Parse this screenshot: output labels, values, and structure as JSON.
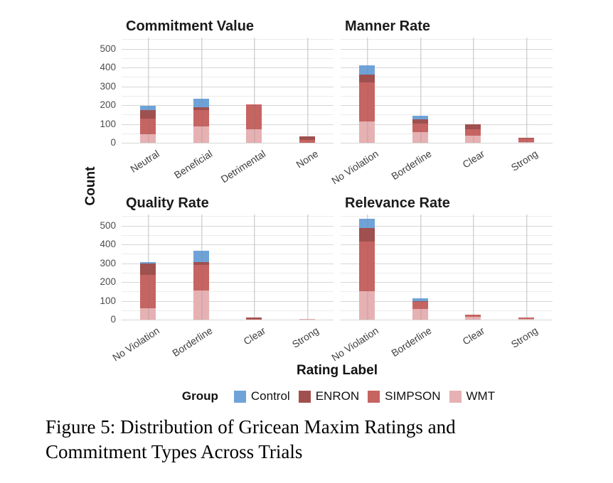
{
  "figure": {
    "y_axis_title": "Count",
    "x_axis_title": "Rating Label",
    "legend": {
      "title": "Group",
      "items": [
        {
          "label": "Control",
          "color": "#6fa3d8"
        },
        {
          "label": "ENRON",
          "color": "#a0504e"
        },
        {
          "label": "SIMPSON",
          "color": "#c66462"
        },
        {
          "label": "WMT",
          "color": "#e6b1b3"
        }
      ]
    },
    "caption_line1": "Figure 5: Distribution of Gricean Maxim Ratings and",
    "caption_line2": "Commitment Types Across Trials"
  },
  "chart_data": [
    {
      "type": "bar",
      "stacked": true,
      "title": "Commitment Value",
      "categories": [
        "Neutral",
        "Beneficial",
        "Detrimental",
        "None"
      ],
      "series": [
        {
          "name": "Control",
          "values": [
            20,
            45,
            0,
            0
          ]
        },
        {
          "name": "ENRON",
          "values": [
            45,
            15,
            0,
            20
          ]
        },
        {
          "name": "SIMPSON",
          "values": [
            85,
            90,
            135,
            15
          ]
        },
        {
          "name": "WMT",
          "values": [
            45,
            85,
            70,
            0
          ]
        }
      ],
      "ylim": [
        0,
        500
      ],
      "yticks": [
        0,
        100,
        200,
        300,
        400,
        500
      ],
      "grid": true,
      "legend_position": "bottom"
    },
    {
      "type": "bar",
      "stacked": true,
      "title": "Manner Rate",
      "categories": [
        "No Violation",
        "Borderline",
        "Clear",
        "Strong"
      ],
      "series": [
        {
          "name": "Control",
          "values": [
            48,
            17,
            0,
            0
          ]
        },
        {
          "name": "ENRON",
          "values": [
            42,
            22,
            25,
            3
          ]
        },
        {
          "name": "SIMPSON",
          "values": [
            205,
            45,
            36,
            22
          ]
        },
        {
          "name": "WMT",
          "values": [
            115,
            58,
            36,
            3
          ]
        }
      ],
      "ylim": [
        0,
        500
      ],
      "yticks": [
        0,
        100,
        200,
        300,
        400,
        500
      ],
      "grid": true,
      "legend_position": "bottom"
    },
    {
      "type": "bar",
      "stacked": true,
      "title": "Quality Rate",
      "categories": [
        "No Violation",
        "Borderline",
        "Clear",
        "Strong"
      ],
      "series": [
        {
          "name": "Control",
          "values": [
            8,
            60,
            0,
            0
          ]
        },
        {
          "name": "ENRON",
          "values": [
            60,
            15,
            10,
            0
          ]
        },
        {
          "name": "SIMPSON",
          "values": [
            175,
            135,
            3,
            0
          ]
        },
        {
          "name": "WMT",
          "values": [
            62,
            155,
            0,
            2
          ]
        }
      ],
      "ylim": [
        0,
        500
      ],
      "yticks": [
        0,
        100,
        200,
        300,
        400,
        500
      ],
      "grid": true,
      "legend_position": "bottom"
    },
    {
      "type": "bar",
      "stacked": true,
      "title": "Relevance Rate",
      "categories": [
        "No Violation",
        "Borderline",
        "Clear",
        "Strong"
      ],
      "series": [
        {
          "name": "Control",
          "values": [
            48,
            15,
            0,
            0
          ]
        },
        {
          "name": "ENRON",
          "values": [
            72,
            5,
            0,
            0
          ]
        },
        {
          "name": "SIMPSON",
          "values": [
            265,
            37,
            10,
            8
          ]
        },
        {
          "name": "WMT",
          "values": [
            150,
            58,
            17,
            4
          ]
        }
      ],
      "ylim": [
        0,
        500
      ],
      "yticks": [
        0,
        100,
        200,
        300,
        400,
        500
      ],
      "grid": true,
      "legend_position": "bottom"
    }
  ]
}
